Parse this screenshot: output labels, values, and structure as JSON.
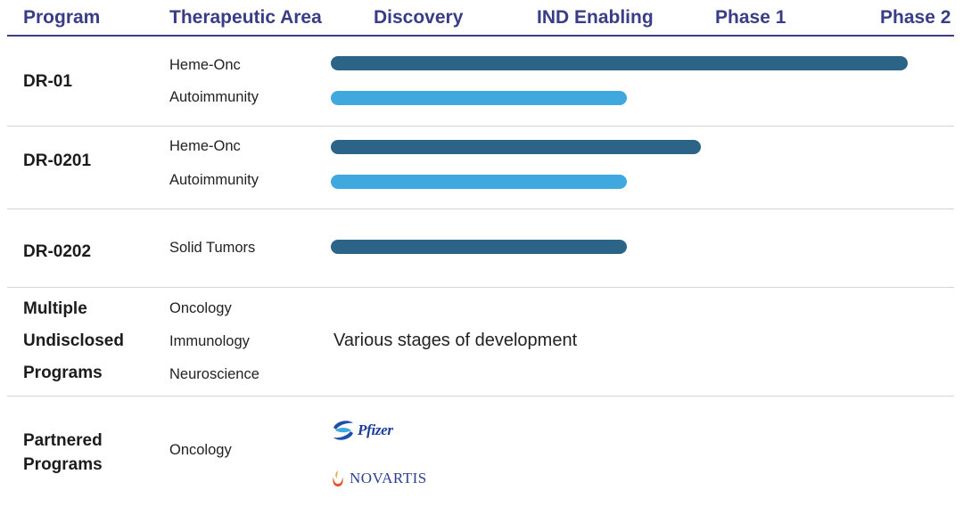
{
  "header": {
    "program": "Program",
    "area": "Therapeutic Area",
    "stages": [
      "Discovery",
      "IND Enabling",
      "Phase 1",
      "Phase 2"
    ]
  },
  "colors": {
    "header_text": "#3a3d85",
    "heme_onc": "#2c6488",
    "autoimmunity": "#3fa9df",
    "solid_tumors": "#2c6488"
  },
  "chart_data": {
    "type": "bar",
    "orientation": "horizontal",
    "x_axis_stages": [
      "Discovery",
      "IND Enabling",
      "Phase 1",
      "Phase 2"
    ],
    "xlim": [
      0,
      4
    ],
    "grid": false,
    "series": [
      {
        "program": "DR-01",
        "area": "Heme-Onc",
        "progress": 3.9,
        "color": "#2c6488"
      },
      {
        "program": "DR-01",
        "area": "Autoimmunity",
        "progress": 2.0,
        "color": "#3fa9df"
      },
      {
        "program": "DR-0201",
        "area": "Heme-Onc",
        "progress": 2.5,
        "color": "#2c6488"
      },
      {
        "program": "DR-0201",
        "area": "Autoimmunity",
        "progress": 2.0,
        "color": "#3fa9df"
      },
      {
        "program": "DR-0202",
        "area": "Solid Tumors",
        "progress": 2.0,
        "color": "#2c6488"
      }
    ]
  },
  "rows": [
    {
      "program": "DR-01",
      "areas": [
        "Heme-Onc",
        "Autoimmunity"
      ]
    },
    {
      "program": "DR-0201",
      "areas": [
        "Heme-Onc",
        "Autoimmunity"
      ]
    },
    {
      "program": "DR-0202",
      "areas": [
        "Solid Tumors"
      ]
    },
    {
      "program_lines": [
        "Multiple",
        "Undisclosed",
        "Programs"
      ],
      "areas": [
        "Oncology",
        "Immunology",
        "Neuroscience"
      ],
      "note": "Various stages of development"
    },
    {
      "program_lines": [
        "Partnered",
        "Programs"
      ],
      "areas": [
        "Oncology"
      ],
      "partners": [
        "Pfizer",
        "NOVARTIS"
      ]
    }
  ]
}
